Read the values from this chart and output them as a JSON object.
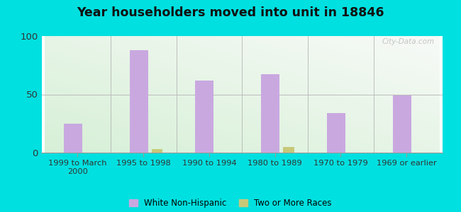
{
  "title": "Year householders moved into unit in 18846",
  "categories": [
    "1999 to March\n2000",
    "1995 to 1998",
    "1990 to 1994",
    "1980 to 1989",
    "1970 to 1979",
    "1969 or earlier"
  ],
  "white_non_hispanic": [
    25,
    88,
    62,
    67,
    34,
    49
  ],
  "two_or_more_races": [
    0,
    3,
    0,
    5,
    0,
    0
  ],
  "bar_color_white": "#c9a8e0",
  "bar_color_two": "#c8c87a",
  "ylim": [
    0,
    100
  ],
  "yticks": [
    0,
    50,
    100
  ],
  "background_outer": "#00e0e0",
  "watermark": "City-Data.com",
  "legend_white": "White Non-Hispanic",
  "legend_two": "Two or More Races",
  "bar_width": 0.28
}
